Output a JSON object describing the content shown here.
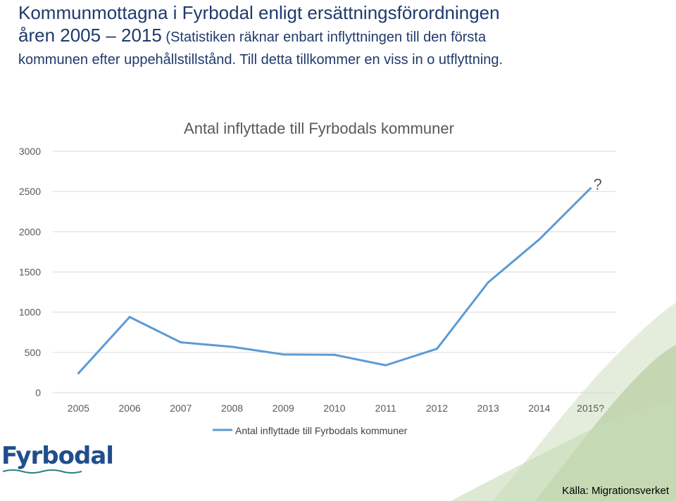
{
  "slide": {
    "title_line1": "Kommunmottagna i Fyrbodal enligt ersättningsförordningen",
    "title_line2_main": "åren 2005 – 2015",
    "title_line2_sub": " (Statistiken räknar enbart inflyttningen till den första",
    "title_line3": "kommunen efter uppehållstillstånd. Till detta tillkommer en viss in o utflyttning.",
    "logo_text": "Fyrbodal",
    "source": "Källa: Migrationsverket"
  },
  "colors": {
    "line": "#5b9bd5",
    "grid": "#d9d9d9",
    "title_text": "#1f3a6d",
    "wave": "#a9c58f"
  },
  "chart_data": {
    "type": "line",
    "title": "Antal inflyttade till Fyrbodals kommuner",
    "categories": [
      "2005",
      "2006",
      "2007",
      "2008",
      "2009",
      "2010",
      "2011",
      "2012",
      "2013",
      "2014",
      "2015?"
    ],
    "series": [
      {
        "name": "Antal inflyttade till Fyrbodals kommuner",
        "values": [
          240,
          940,
          625,
          570,
          475,
          470,
          340,
          545,
          1370,
          1905,
          2540
        ]
      }
    ],
    "annotation": "?",
    "ylim": [
      0,
      3000
    ],
    "yticks": [
      0,
      500,
      1000,
      1500,
      2000,
      2500,
      3000
    ],
    "grid": true,
    "legend_position": "bottom"
  }
}
